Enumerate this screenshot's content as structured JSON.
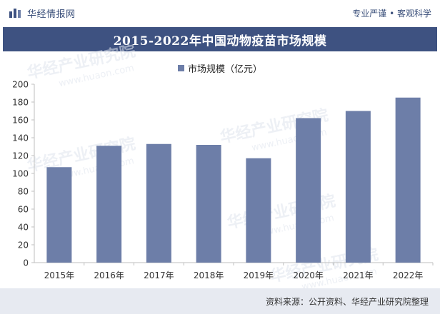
{
  "header": {
    "brand_name": "华经情报网",
    "slogan": "专业严谨 • 客观科学"
  },
  "title": "2015-2022年中国动物疫苗市场规模",
  "footer": {
    "source": "资料来源：公开资料、华经产业研究院整理"
  },
  "watermark": {
    "cn": "华经产业研究院",
    "en": "www.huaon.com"
  },
  "colors": {
    "bar": "#6d7ea8",
    "title_bg": "#3e5281",
    "footer_bg": "#e7eaf1"
  },
  "chart_data": {
    "type": "bar",
    "categories": [
      "2015年",
      "2016年",
      "2017年",
      "2018年",
      "2019年",
      "2020年",
      "2021年",
      "2022年"
    ],
    "series": [
      {
        "name": "市场规模（亿元）",
        "values": [
          107,
          131,
          133,
          132,
          117,
          162,
          170,
          185
        ]
      }
    ],
    "xlabel": "",
    "ylabel": "",
    "ylim": [
      0,
      200
    ],
    "yticks": [
      0,
      20,
      40,
      60,
      80,
      100,
      120,
      140,
      160,
      180,
      200
    ],
    "grid": false,
    "legend": "top-center"
  }
}
